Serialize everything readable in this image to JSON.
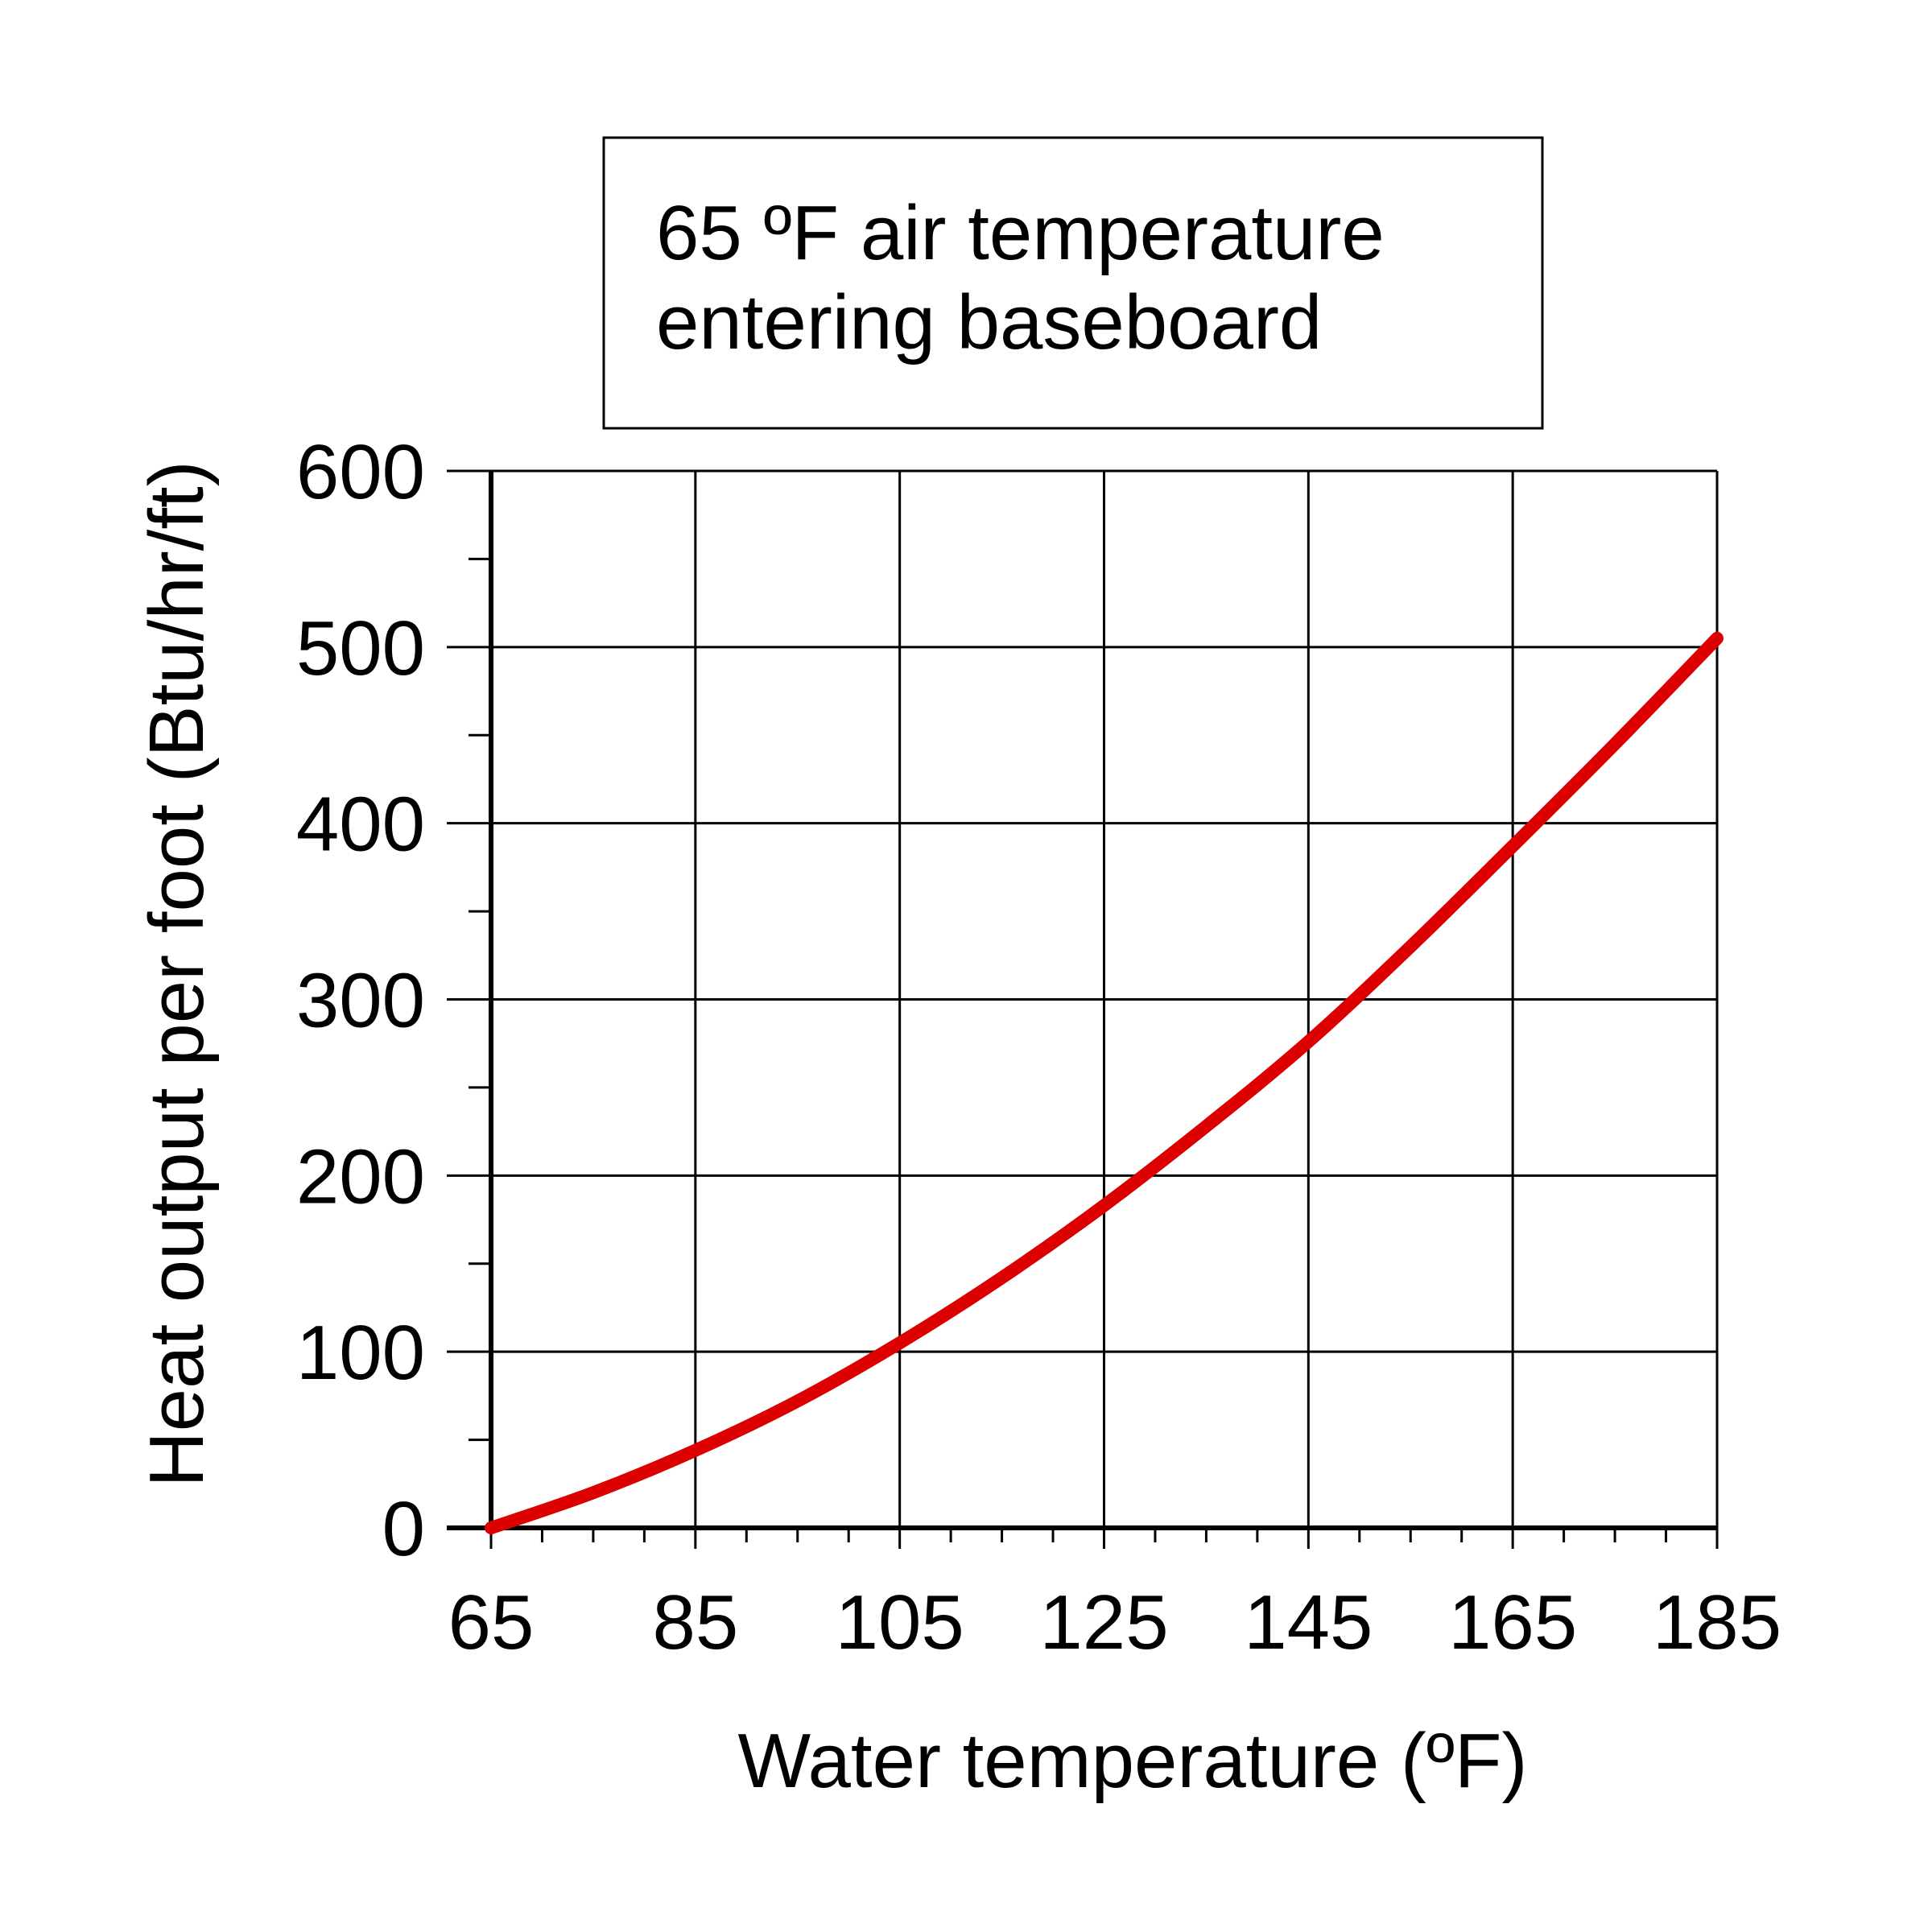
{
  "chart_data": {
    "type": "line",
    "title": "",
    "annotation": [
      "65 ºF air temperature",
      "entering baseboard"
    ],
    "xlabel": "Water temperature (ºF)",
    "ylabel": "Heat output per foot (Btu/hr/ft)",
    "xlim": [
      65,
      185
    ],
    "ylim": [
      0,
      600
    ],
    "x_ticks": [
      "65",
      "85",
      "105",
      "125",
      "145",
      "165",
      "185"
    ],
    "y_ticks": [
      "0",
      "100",
      "200",
      "300",
      "400",
      "500",
      "600"
    ],
    "grid": true,
    "legend": "none",
    "series": [
      {
        "color": "#dd0000",
        "x": [
          65,
          75,
          85,
          95,
          105,
          115,
          125,
          135,
          145,
          155,
          165,
          175,
          185
        ],
        "values": [
          0,
          20,
          44,
          72,
          105,
          142,
          183,
          228,
          276,
          330,
          387,
          445,
          505
        ]
      }
    ]
  }
}
